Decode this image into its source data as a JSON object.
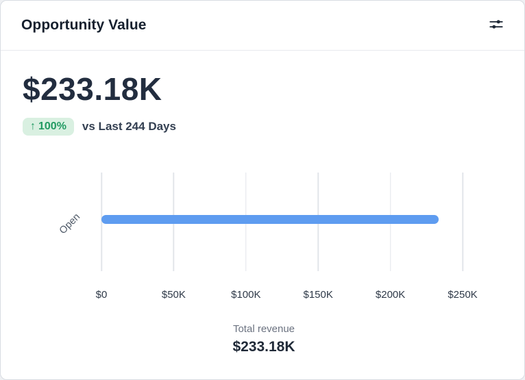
{
  "header": {
    "title": "Opportunity Value"
  },
  "summary": {
    "value": "$233.18K",
    "change_arrow": "↑",
    "change_badge": "100%",
    "comparison": "vs Last 244 Days",
    "badge_bg": "#d9f0e1",
    "badge_color": "#219a62"
  },
  "chart_data": {
    "type": "bar",
    "orientation": "horizontal",
    "categories": [
      "Open"
    ],
    "values": [
      233.18
    ],
    "value_unit": "K USD",
    "xticks": [
      "$0",
      "$50K",
      "$100K",
      "$150K",
      "$200K",
      "$250K"
    ],
    "xlim": [
      0,
      250
    ],
    "grid": true,
    "bar_color": "#5e9cf0"
  },
  "footer": {
    "label": "Total revenue",
    "value": "$233.18K"
  }
}
